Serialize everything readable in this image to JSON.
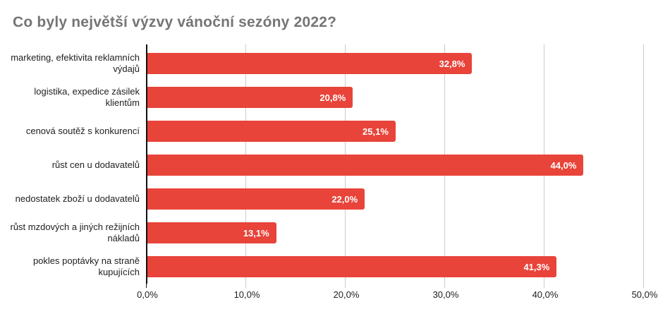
{
  "chart_data": {
    "type": "bar",
    "orientation": "horizontal",
    "title": "Co byly největší výzvy vánoční sezóny 2022?",
    "categories": [
      "marketing, efektivita reklamních\nvýdajů",
      "logistika, expedice zásilek\nklientům",
      "cenová soutěž s konkurencí",
      "růst cen u dodavatelů",
      "nedostatek zboží u dodavatelů",
      "růst mzdových a jiných režijních\nnákladů",
      "pokles poptávky na straně\nkupujících"
    ],
    "values": [
      32.8,
      20.8,
      25.1,
      44.0,
      22.0,
      13.1,
      41.3
    ],
    "value_labels": [
      "32,8%",
      "20,8%",
      "25,1%",
      "44,0%",
      "22,0%",
      "13,1%",
      "41,3%"
    ],
    "xlabel": "",
    "ylabel": "",
    "xlim": [
      0,
      50
    ],
    "x_tick_values": [
      0,
      10,
      20,
      30,
      40,
      50
    ],
    "x_tick_labels": [
      "0,0%",
      "10,0%",
      "20,0%",
      "30,0%",
      "40,0%",
      "50,0%"
    ],
    "grid": true,
    "legend": "none",
    "colors": {
      "bar": "#e8443a",
      "value_text": "#ffffff",
      "title": "#757575",
      "axis": "#111111",
      "gridline": "#cccccc",
      "label": "#212121",
      "background": "#ffffff"
    }
  }
}
